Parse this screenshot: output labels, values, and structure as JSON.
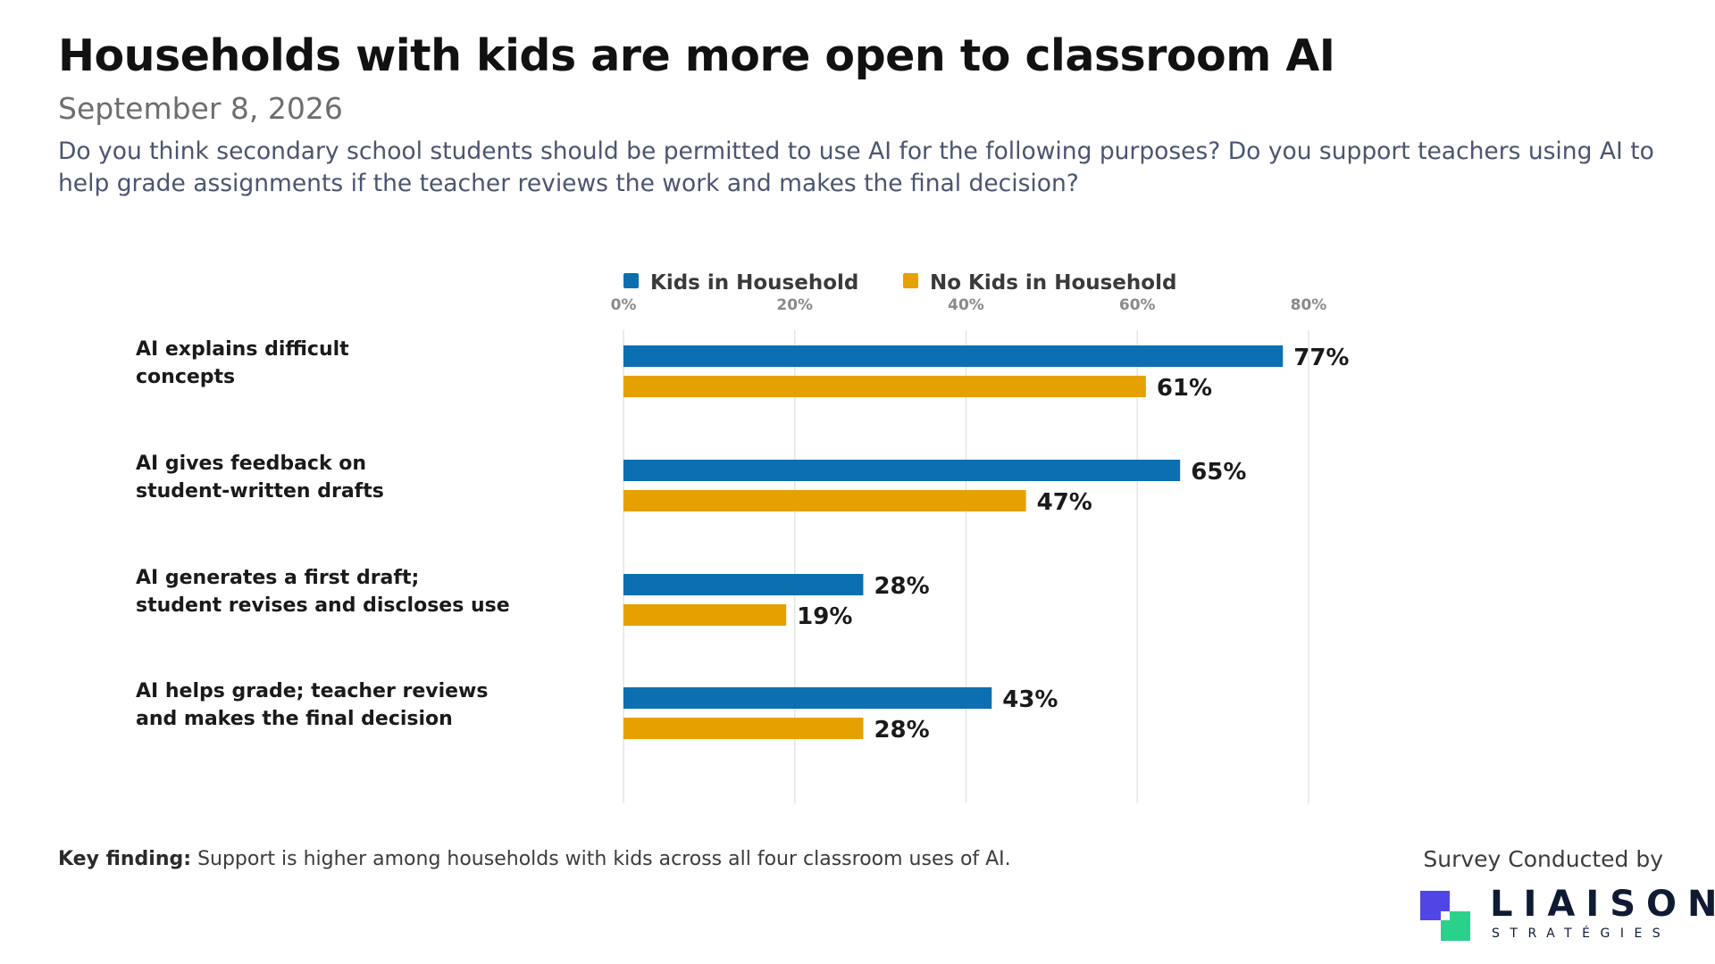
{
  "header": {
    "title": "Households with kids are more open to classroom AI",
    "date": "September 8, 2026",
    "question": "Do you think secondary school students should be permitted to use AI for the following purposes? Do you support teachers using AI to help grade assignments if the teacher reviews the work and makes the final decision?"
  },
  "chart_data": {
    "type": "bar",
    "orientation": "horizontal",
    "categories": [
      [
        "AI explains difficult",
        "concepts"
      ],
      [
        "AI gives feedback on",
        "student-written drafts"
      ],
      [
        "AI generates a first draft;",
        "student revises and discloses use"
      ],
      [
        "AI helps grade; teacher reviews",
        "and makes the final decision"
      ]
    ],
    "series": [
      {
        "name": "Kids in Household",
        "color": "#0b6fb0",
        "values": [
          77,
          65,
          28,
          43
        ]
      },
      {
        "name": "No Kids in Household",
        "color": "#e5a100",
        "values": [
          61,
          47,
          19,
          28
        ]
      }
    ],
    "value_suffix": "%",
    "xlim": [
      0,
      80
    ],
    "ticks": [
      0,
      20,
      40,
      60,
      80
    ],
    "tick_labels": [
      "0%",
      "20%",
      "40%",
      "60%",
      "80%"
    ],
    "grid": true,
    "legend_position": "top"
  },
  "footer": {
    "key_finding_prefix": "Key finding:",
    "key_finding_text": "Support is higher among households with kids across all four classroom uses of AI.",
    "survey_by": "Survey Conducted by",
    "logo_name": "LIAISON",
    "logo_sub": "STRATÉGIES",
    "logo_colors": {
      "purple": "#5046e5",
      "green": "#2ad18a"
    }
  }
}
